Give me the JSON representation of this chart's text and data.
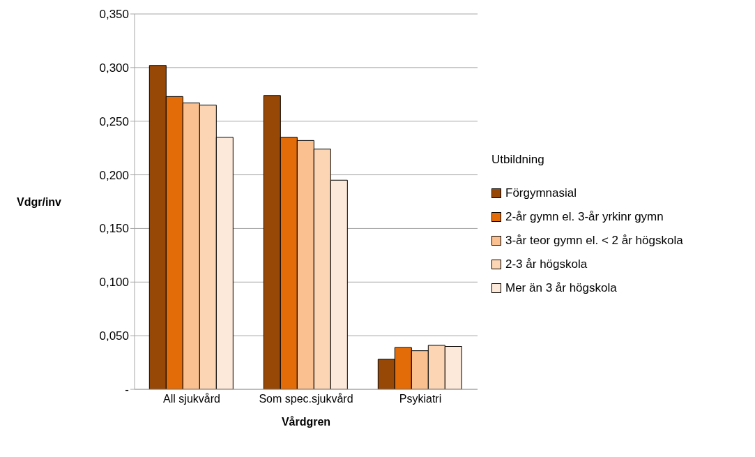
{
  "chart_data": {
    "type": "bar",
    "xlabel": "Vårdgren",
    "ylabel": "Vdgr/inv",
    "legend_title": "Utbildning",
    "categories": [
      "All sjukvård",
      "Som spec.sjukvård",
      "Psykiatri"
    ],
    "series": [
      {
        "name": "Förgymnasial",
        "color": "#974706",
        "values": [
          0.302,
          0.274,
          0.028
        ]
      },
      {
        "name": "2-år gymn el. 3-år yrkinr gymn",
        "color": "#e36c09",
        "values": [
          0.273,
          0.235,
          0.039
        ]
      },
      {
        "name": "3-år teor gymn el. < 2 år högskola",
        "color": "#fac090",
        "values": [
          0.267,
          0.232,
          0.036
        ]
      },
      {
        "name": "2-3 år högskola",
        "color": "#fcd5b5",
        "values": [
          0.265,
          0.224,
          0.041
        ]
      },
      {
        "name": "Mer än 3 år högskola",
        "color": "#fde9d9",
        "values": [
          0.235,
          0.195,
          0.04
        ]
      }
    ],
    "ylim": [
      0,
      0.35
    ],
    "yticks": [
      {
        "value": 0,
        "label": "-"
      },
      {
        "value": 0.05,
        "label": "0,050"
      },
      {
        "value": 0.1,
        "label": "0,100"
      },
      {
        "value": 0.15,
        "label": "0,150"
      },
      {
        "value": 0.2,
        "label": "0,200"
      },
      {
        "value": 0.25,
        "label": "0,250"
      },
      {
        "value": 0.3,
        "label": "0,300"
      },
      {
        "value": 0.35,
        "label": "0,350"
      }
    ],
    "grid": "y",
    "legend": "right"
  }
}
